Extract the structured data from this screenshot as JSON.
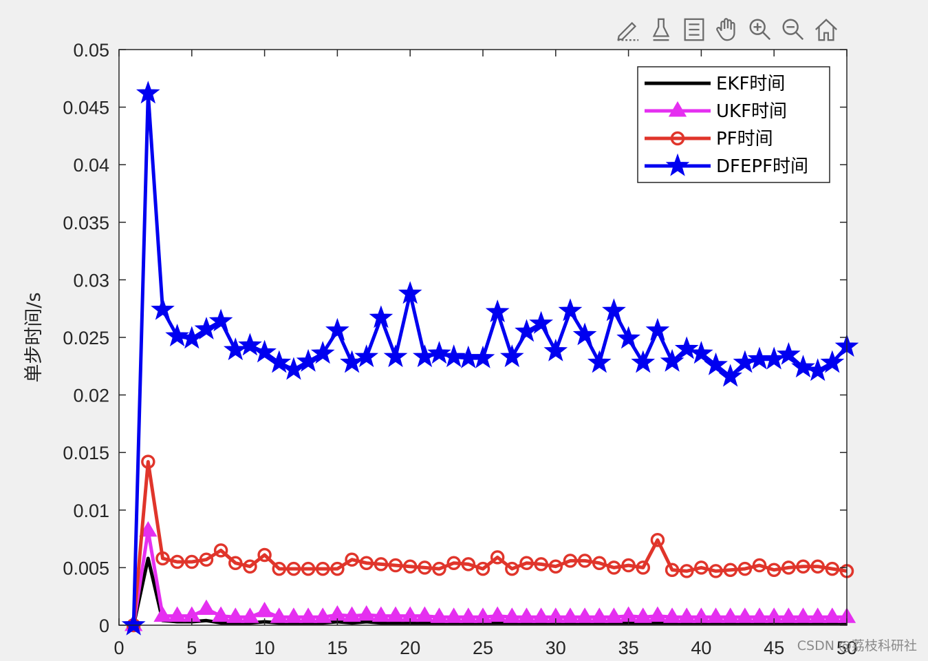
{
  "toolbar": {
    "icons": [
      "brush-edit-icon",
      "data-tip-icon",
      "legend-icon",
      "pan-hand-icon",
      "zoom-in-icon",
      "zoom-out-icon",
      "home-icon"
    ]
  },
  "watermark": "CSDN @荔枝科研社",
  "chart_data": {
    "type": "line",
    "title": "",
    "xlabel": "",
    "ylabel": "单步时间/s",
    "xlim": [
      0,
      50
    ],
    "ylim": [
      0,
      0.05
    ],
    "xticks": [
      0,
      5,
      10,
      15,
      20,
      25,
      30,
      35,
      40,
      45,
      50
    ],
    "xtick_labels": [
      "0",
      "5",
      "10",
      "15",
      "20",
      "25",
      "30",
      "35",
      "40",
      "45",
      "50"
    ],
    "yticks": [
      0,
      0.005,
      0.01,
      0.015,
      0.02,
      0.025,
      0.03,
      0.035,
      0.04,
      0.045,
      0.05
    ],
    "ytick_labels": [
      "0",
      "0.005",
      "0.01",
      "0.015",
      "0.02",
      "0.025",
      "0.03",
      "0.035",
      "0.04",
      "0.045",
      "0.05"
    ],
    "grid": false,
    "legend_position": "top-right",
    "x": [
      1,
      2,
      3,
      4,
      5,
      6,
      7,
      8,
      9,
      10,
      11,
      12,
      13,
      14,
      15,
      16,
      17,
      18,
      19,
      20,
      21,
      22,
      23,
      24,
      25,
      26,
      27,
      28,
      29,
      30,
      31,
      32,
      33,
      34,
      35,
      36,
      37,
      38,
      39,
      40,
      41,
      42,
      43,
      44,
      45,
      46,
      47,
      48,
      49,
      50
    ],
    "series": [
      {
        "name": "EKF时间",
        "color": "#000000",
        "marker": "none",
        "values": [
          0,
          0.0058,
          0.0004,
          0.0003,
          0.0003,
          0.0004,
          0.0002,
          0.0002,
          0.0002,
          0.0003,
          0.0002,
          0.0002,
          0.0002,
          0.0002,
          0.0003,
          0.0002,
          0.0003,
          0.0002,
          0.0002,
          0.0002,
          0.0002,
          0.0002,
          0.0002,
          0.0002,
          0.0002,
          0.0002,
          0.0002,
          0.0002,
          0.0002,
          0.0002,
          0.0002,
          0.0002,
          0.0002,
          0.0002,
          0.0002,
          0.0002,
          0.0002,
          0.0002,
          0.0002,
          0.0002,
          0.0002,
          0.0002,
          0.0002,
          0.0002,
          0.0002,
          0.0002,
          0.0002,
          0.0002,
          0.0002,
          0.0002
        ]
      },
      {
        "name": "UKF时间",
        "color": "#e52ff0",
        "marker": "triangle",
        "values": [
          0,
          0.0082,
          0.0008,
          0.0008,
          0.0008,
          0.0014,
          0.0008,
          0.0007,
          0.0007,
          0.0012,
          0.0007,
          0.0007,
          0.0007,
          0.0007,
          0.0009,
          0.0008,
          0.0009,
          0.0008,
          0.0008,
          0.0008,
          0.0008,
          0.0007,
          0.0007,
          0.0007,
          0.0007,
          0.0008,
          0.0007,
          0.0007,
          0.0007,
          0.0007,
          0.0007,
          0.0007,
          0.0007,
          0.0007,
          0.0008,
          0.0007,
          0.0008,
          0.0007,
          0.0007,
          0.0007,
          0.0007,
          0.0007,
          0.0007,
          0.0007,
          0.0007,
          0.0007,
          0.0007,
          0.0007,
          0.0007,
          0.0007
        ]
      },
      {
        "name": "PF时间",
        "color": "#e0352b",
        "marker": "circle",
        "values": [
          0,
          0.0142,
          0.0058,
          0.0055,
          0.0055,
          0.0057,
          0.0065,
          0.0054,
          0.0051,
          0.0061,
          0.0049,
          0.0049,
          0.0049,
          0.0049,
          0.0049,
          0.0057,
          0.0054,
          0.0053,
          0.0052,
          0.0051,
          0.005,
          0.0049,
          0.0054,
          0.0053,
          0.0049,
          0.0059,
          0.0049,
          0.0054,
          0.0053,
          0.0051,
          0.0056,
          0.0056,
          0.0054,
          0.005,
          0.0052,
          0.005,
          0.0074,
          0.0048,
          0.0047,
          0.005,
          0.0047,
          0.0048,
          0.0049,
          0.0052,
          0.0048,
          0.005,
          0.0051,
          0.0051,
          0.0049,
          0.0047
        ]
      },
      {
        "name": "DFEPF时间",
        "color": "#0000f0",
        "marker": "star",
        "values": [
          0,
          0.0462,
          0.0274,
          0.0251,
          0.0249,
          0.0257,
          0.0264,
          0.0239,
          0.0243,
          0.0237,
          0.0228,
          0.0222,
          0.0229,
          0.0236,
          0.0256,
          0.0228,
          0.0233,
          0.0267,
          0.0233,
          0.0288,
          0.0233,
          0.0236,
          0.0233,
          0.0232,
          0.0232,
          0.0272,
          0.0233,
          0.0255,
          0.0262,
          0.0238,
          0.0273,
          0.0252,
          0.0228,
          0.0273,
          0.0249,
          0.0228,
          0.0256,
          0.0229,
          0.024,
          0.0236,
          0.0226,
          0.0216,
          0.0228,
          0.0231,
          0.0231,
          0.0235,
          0.0224,
          0.0221,
          0.0228,
          0.0242
        ]
      }
    ]
  }
}
